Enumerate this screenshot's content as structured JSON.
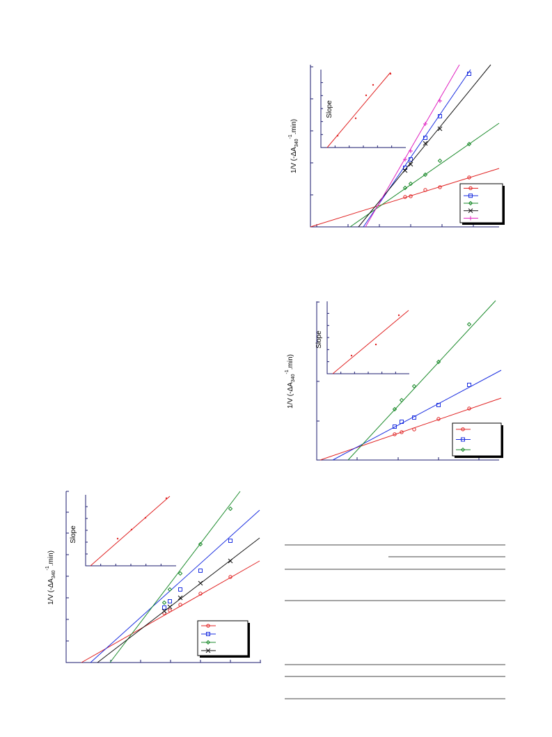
{
  "figures": [
    {
      "y_axis_label": {
        "main": "1/V (-ΔA",
        "sub": "340",
        "sup": "-1",
        "tail": ".min)"
      },
      "inset_y_label": "Slope"
    },
    {
      "y_axis_label": {
        "main": "1/V (-ΔA",
        "sub": "340",
        "sup": "-1",
        "tail": ".min)"
      },
      "inset_y_label": "Slope"
    },
    {
      "y_axis_label": {
        "main": "1/V (-ΔA",
        "sub": "340",
        "sup": "-1",
        "tail": ".min)"
      },
      "inset_y_label": "Slope"
    }
  ]
}
